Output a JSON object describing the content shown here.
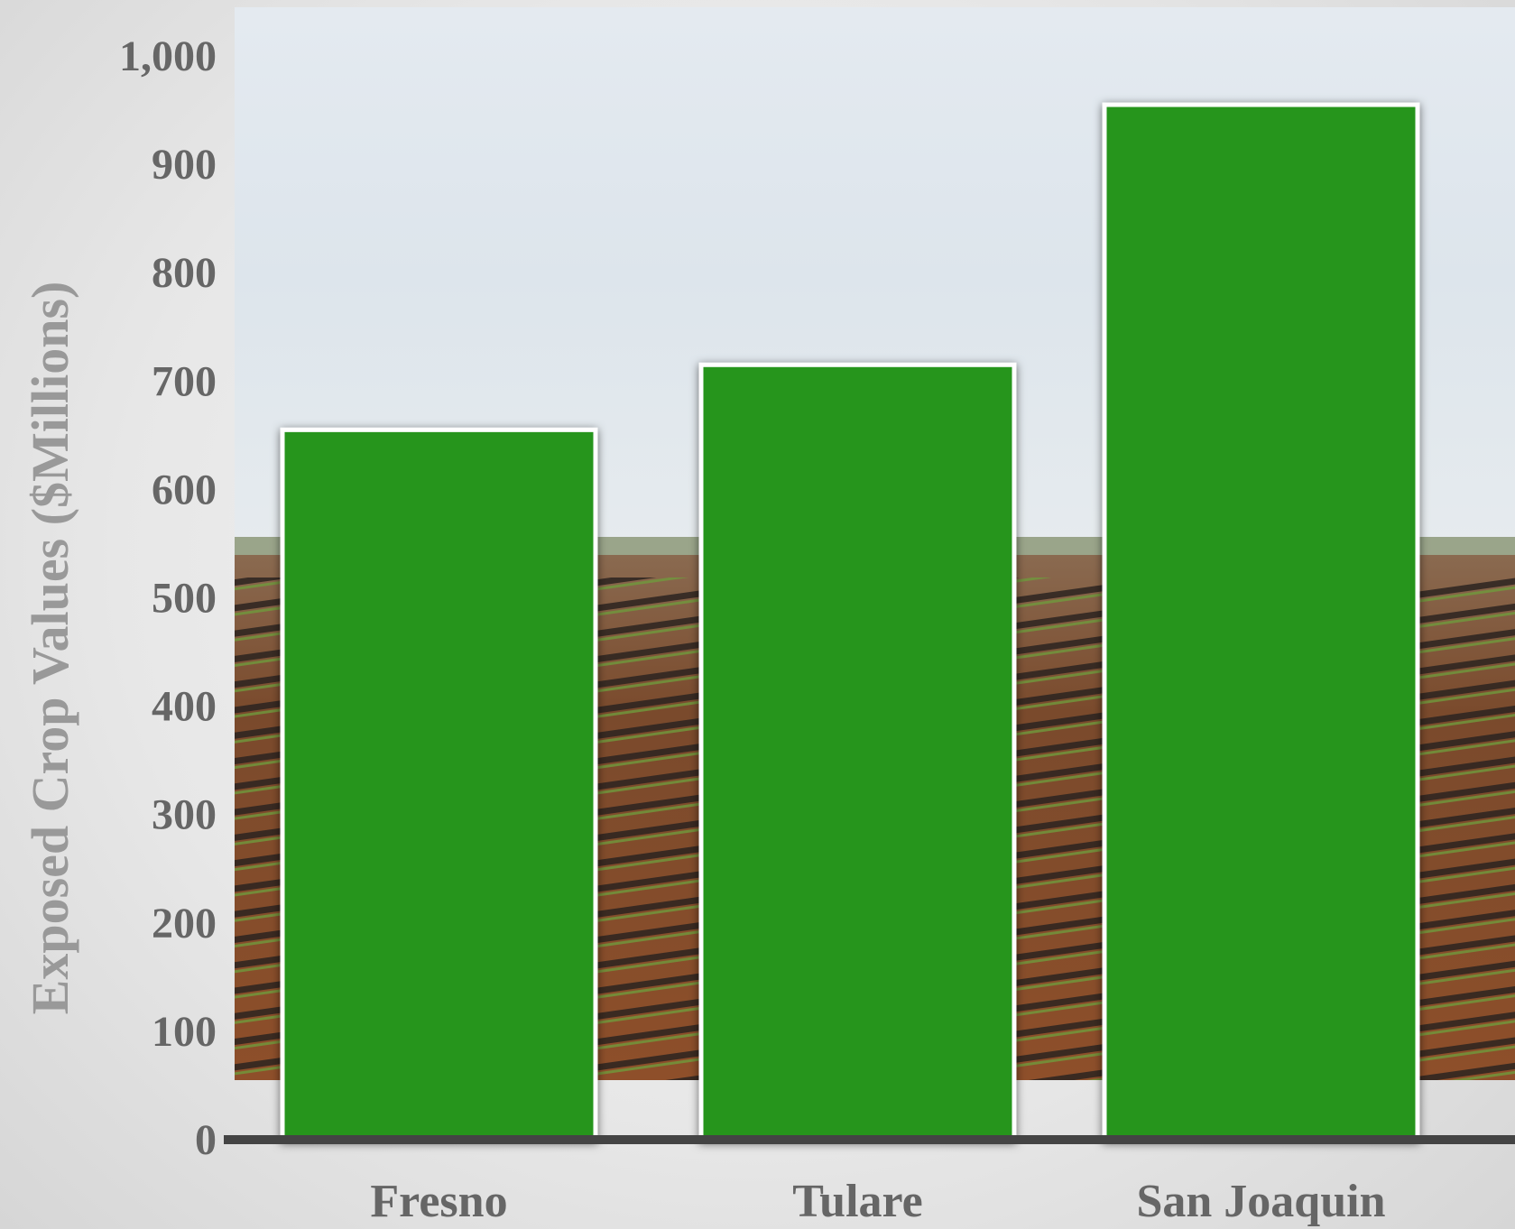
{
  "chart_data": {
    "type": "bar",
    "categories": [
      "Fresno",
      "Tulare",
      "San Joaquin"
    ],
    "values": [
      655,
      715,
      955
    ],
    "title": "",
    "xlabel": "",
    "ylabel": "Exposed Crop Values ($Millions)",
    "ylim": [
      0,
      1000
    ],
    "yticks": [
      "0",
      "100",
      "200",
      "300",
      "400",
      "500",
      "600",
      "700",
      "800",
      "900",
      "1,000"
    ],
    "grid": false,
    "bar_color": "#27951f",
    "bar_outline_color": "#ffffff",
    "axis_color": "#444444",
    "background": "photo of irrigated farm field rows"
  }
}
